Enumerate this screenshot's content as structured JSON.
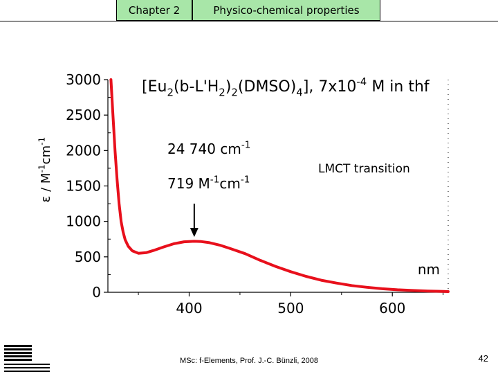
{
  "header": {
    "chapter_label": "Chapter 2",
    "section_label": "Physico-chemical properties",
    "tab_color": "#a8e6a8"
  },
  "footer": {
    "credit": "MSc: f-Elements,  Prof. J.-C. Bünzli, 2008",
    "page_number": "42",
    "logo": "EPFL"
  },
  "chart_data": {
    "type": "line",
    "title_parts": [
      {
        "t": "[Eu"
      },
      {
        "t": "2",
        "sub": true
      },
      {
        "t": "(b-L'H"
      },
      {
        "t": "2",
        "sub": true
      },
      {
        "t": ")"
      },
      {
        "t": "2",
        "sub": true
      },
      {
        "t": "(DMSO)"
      },
      {
        "t": "4",
        "sub": true
      },
      {
        "t": "], 7x10"
      },
      {
        "t": "-4",
        "sup": true
      },
      {
        "t": " M in thf"
      }
    ],
    "ylabel_parts": [
      {
        "t": "ε / M"
      },
      {
        "t": "-1",
        "sup": true
      },
      {
        "t": "cm"
      },
      {
        "t": "-1",
        "sup": true
      }
    ],
    "xunit": "nm",
    "xlim": [
      320,
      655
    ],
    "ylim": [
      0,
      3000
    ],
    "xticks": [
      400,
      500,
      600
    ],
    "yticks": [
      0,
      500,
      1000,
      1500,
      2000,
      2500,
      3000
    ],
    "line_color": "#e8101c",
    "series": [
      {
        "x": [
          323,
          325,
          327,
          329,
          331,
          333,
          335,
          337,
          340,
          344,
          350,
          358,
          365,
          375,
          385,
          395,
          405,
          412,
          420,
          430,
          440,
          455,
          470,
          485,
          500,
          515,
          530,
          545,
          560,
          575,
          590,
          605,
          620,
          635,
          650,
          655
        ],
        "y": [
          3000,
          2500,
          2000,
          1600,
          1250,
          1000,
          850,
          740,
          650,
          585,
          550,
          560,
          590,
          640,
          685,
          712,
          719,
          715,
          700,
          665,
          620,
          545,
          450,
          365,
          290,
          225,
          170,
          130,
          95,
          70,
          50,
          35,
          25,
          18,
          12,
          10
        ]
      }
    ],
    "annotations": {
      "wavenumber_parts": [
        {
          "t": "24 740 cm"
        },
        {
          "t": "-1",
          "sup": true
        }
      ],
      "epsilon_parts": [
        {
          "t": "719 M"
        },
        {
          "t": "-1",
          "sup": true
        },
        {
          "t": "cm"
        },
        {
          "t": "-1",
          "sup": true
        }
      ],
      "transition": "LMCT transition",
      "arrow_x": 405,
      "arrow_from_y": 1250,
      "arrow_to_y": 780
    }
  }
}
